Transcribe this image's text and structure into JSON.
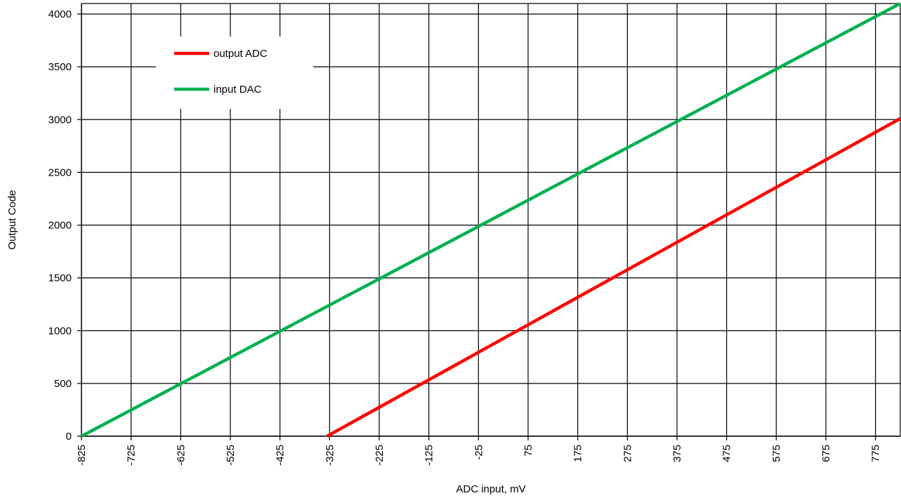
{
  "chart_data": {
    "type": "line",
    "title": "",
    "xlabel": "ADC input, mV",
    "ylabel": "Output Code",
    "xlim": [
      -825,
      825
    ],
    "ylim": [
      0,
      4100
    ],
    "x_ticks": [
      -825,
      -725,
      -625,
      -525,
      -425,
      -325,
      -225,
      -125,
      -25,
      75,
      175,
      275,
      375,
      475,
      575,
      675,
      775
    ],
    "x_tick_labels": [
      "-825",
      "-725",
      "-625",
      "-525",
      "-425",
      "-325",
      "-225",
      "-125",
      "-25",
      "75",
      "175",
      "275",
      "375",
      "475",
      "575",
      "675",
      "775"
    ],
    "y_ticks": [
      0,
      500,
      1000,
      1500,
      2000,
      2500,
      3000,
      3500,
      4000
    ],
    "y_tick_labels": [
      "0",
      "500",
      "1000",
      "1500",
      "2000",
      "2500",
      "3000",
      "3500",
      "4000"
    ],
    "grid": true,
    "x_tick_label_rotation": "vertical",
    "legend_position": "top-left",
    "series": [
      {
        "name": "output ADC",
        "color": "#ff0000",
        "points": [
          [
            -330,
            0
          ],
          [
            825,
            3010
          ]
        ]
      },
      {
        "name": "input DAC",
        "color": "#00b050",
        "points": [
          [
            -825,
            0
          ],
          [
            825,
            4100
          ]
        ]
      }
    ]
  }
}
